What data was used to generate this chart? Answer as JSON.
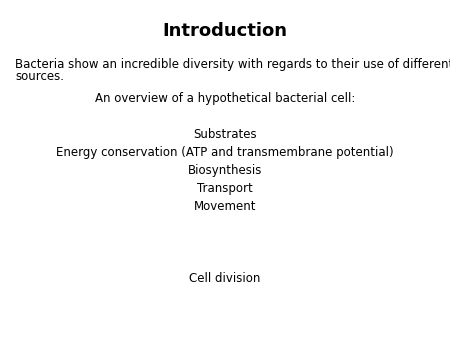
{
  "title": "Introduction",
  "title_fontsize": 13,
  "title_fontweight": "bold",
  "background_color": "#ffffff",
  "text_color": "#000000",
  "body_text_1_line1": "Bacteria show an incredible diversity with regards to their use of different energy",
  "body_text_1_line2": "sources.",
  "body_text_2": "An overview of a hypothetical bacterial cell:",
  "list_items": [
    "Substrates",
    "Energy conservation (ATP and transmembrane potential)",
    "Biosynthesis",
    "Transport",
    "Movement"
  ],
  "extra_item": "Cell division",
  "font_family": "DejaVu Sans",
  "body_fontsize": 8.5,
  "list_fontsize": 8.5
}
